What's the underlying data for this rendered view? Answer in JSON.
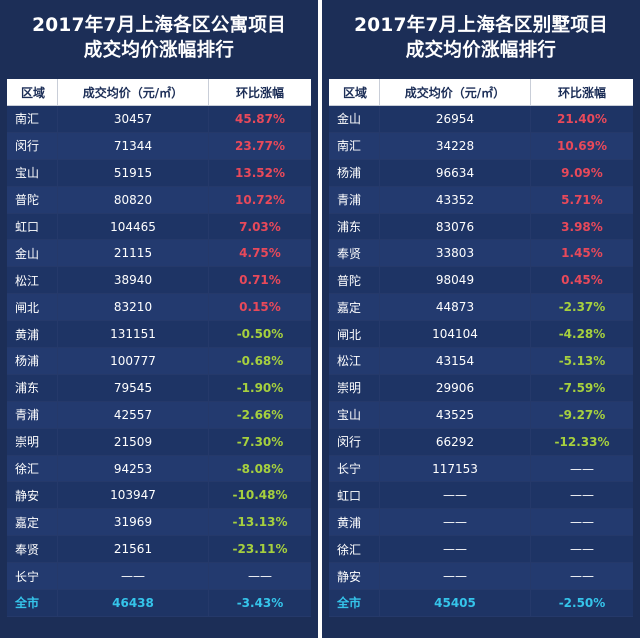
{
  "panels": [
    {
      "title_line1": "2017年7月上海各区公寓项目",
      "title_line2": "成交均价涨幅排行",
      "headers": {
        "region": "区域",
        "price": "成交均价（元/㎡）",
        "change": "环比涨幅"
      },
      "rows": [
        {
          "region": "南汇",
          "price": "30457",
          "change": "45.87%",
          "trend": "up"
        },
        {
          "region": "闵行",
          "price": "71344",
          "change": "23.77%",
          "trend": "up"
        },
        {
          "region": "宝山",
          "price": "51915",
          "change": "13.52%",
          "trend": "up"
        },
        {
          "region": "普陀",
          "price": "80820",
          "change": "10.72%",
          "trend": "up"
        },
        {
          "region": "虹口",
          "price": "104465",
          "change": "7.03%",
          "trend": "up"
        },
        {
          "region": "金山",
          "price": "21115",
          "change": "4.75%",
          "trend": "up"
        },
        {
          "region": "松江",
          "price": "38940",
          "change": "0.71%",
          "trend": "up"
        },
        {
          "region": "闸北",
          "price": "83210",
          "change": "0.15%",
          "trend": "up"
        },
        {
          "region": "黄浦",
          "price": "131151",
          "change": "-0.50%",
          "trend": "down"
        },
        {
          "region": "杨浦",
          "price": "100777",
          "change": "-0.68%",
          "trend": "down"
        },
        {
          "region": "浦东",
          "price": "79545",
          "change": "-1.90%",
          "trend": "down"
        },
        {
          "region": "青浦",
          "price": "42557",
          "change": "-2.66%",
          "trend": "down"
        },
        {
          "region": "崇明",
          "price": "21509",
          "change": "-7.30%",
          "trend": "down"
        },
        {
          "region": "徐汇",
          "price": "94253",
          "change": "-8.08%",
          "trend": "down"
        },
        {
          "region": "静安",
          "price": "103947",
          "change": "-10.48%",
          "trend": "down"
        },
        {
          "region": "嘉定",
          "price": "31969",
          "change": "-13.13%",
          "trend": "down"
        },
        {
          "region": "奉贤",
          "price": "21561",
          "change": "-23.11%",
          "trend": "down"
        },
        {
          "region": "长宁",
          "price": "——",
          "change": "——",
          "trend": "flat"
        }
      ],
      "total": {
        "region": "全市",
        "price": "46438",
        "change": "-3.43%"
      }
    },
    {
      "title_line1": "2017年7月上海各区别墅项目",
      "title_line2": "成交均价涨幅排行",
      "headers": {
        "region": "区域",
        "price": "成交均价（元/㎡）",
        "change": "环比涨幅"
      },
      "rows": [
        {
          "region": "金山",
          "price": "26954",
          "change": "21.40%",
          "trend": "up"
        },
        {
          "region": "南汇",
          "price": "34228",
          "change": "10.69%",
          "trend": "up"
        },
        {
          "region": "杨浦",
          "price": "96634",
          "change": "9.09%",
          "trend": "up"
        },
        {
          "region": "青浦",
          "price": "43352",
          "change": "5.71%",
          "trend": "up"
        },
        {
          "region": "浦东",
          "price": "83076",
          "change": "3.98%",
          "trend": "up"
        },
        {
          "region": "奉贤",
          "price": "33803",
          "change": "1.45%",
          "trend": "up"
        },
        {
          "region": "普陀",
          "price": "98049",
          "change": "0.45%",
          "trend": "up"
        },
        {
          "region": "嘉定",
          "price": "44873",
          "change": "-2.37%",
          "trend": "down"
        },
        {
          "region": "闸北",
          "price": "104104",
          "change": "-4.28%",
          "trend": "down"
        },
        {
          "region": "松江",
          "price": "43154",
          "change": "-5.13%",
          "trend": "down"
        },
        {
          "region": "崇明",
          "price": "29906",
          "change": "-7.59%",
          "trend": "down"
        },
        {
          "region": "宝山",
          "price": "43525",
          "change": "-9.27%",
          "trend": "down"
        },
        {
          "region": "闵行",
          "price": "66292",
          "change": "-12.33%",
          "trend": "down"
        },
        {
          "region": "长宁",
          "price": "117153",
          "change": "——",
          "trend": "flat"
        },
        {
          "region": "虹口",
          "price": "——",
          "change": "——",
          "trend": "flat"
        },
        {
          "region": "黄浦",
          "price": "——",
          "change": "——",
          "trend": "flat"
        },
        {
          "region": "徐汇",
          "price": "——",
          "change": "——",
          "trend": "flat"
        },
        {
          "region": "静安",
          "price": "——",
          "change": "——",
          "trend": "flat"
        }
      ],
      "total": {
        "region": "全市",
        "price": "45405",
        "change": "-2.50%"
      }
    }
  ],
  "colors": {
    "background": "#1c2e57",
    "up": "#e8495a",
    "down": "#a6d03e",
    "total": "#35c4ea"
  }
}
